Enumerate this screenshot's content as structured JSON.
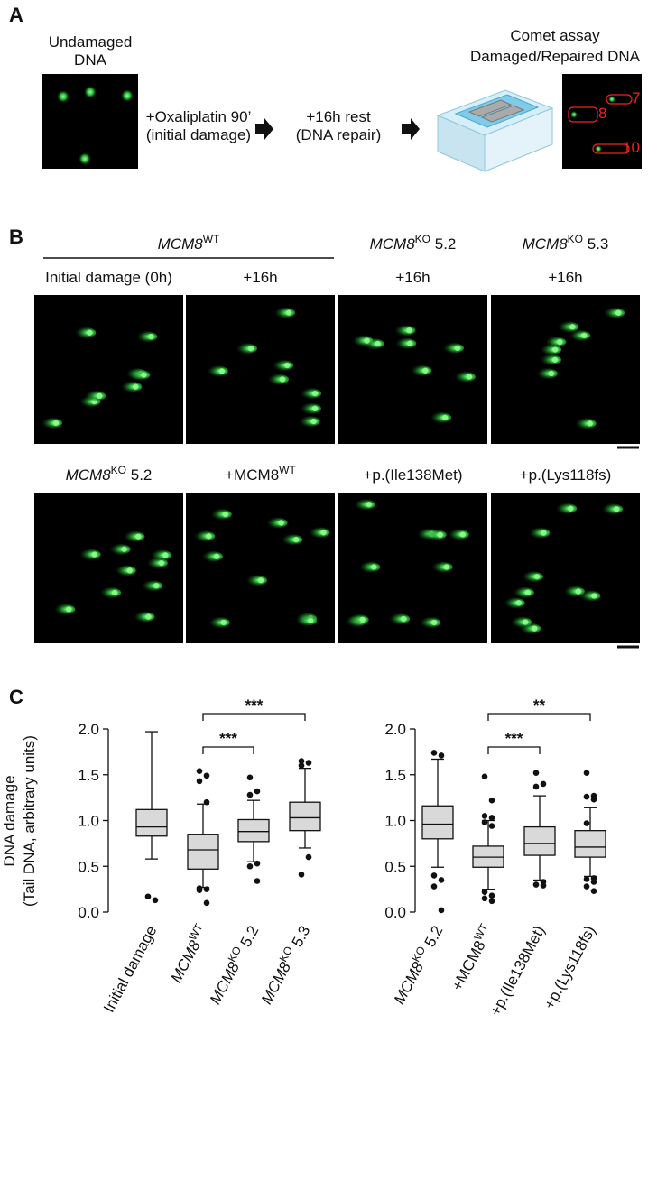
{
  "panel_a": {
    "letter": "A",
    "undamaged": [
      "Undamaged",
      "DNA"
    ],
    "step1": [
      "+Oxaliplatin 90’",
      "(initial damage)"
    ],
    "step2": [
      "+16h rest",
      "(DNA repair)"
    ],
    "result": [
      "Comet assay",
      "Damaged/Repaired DNA"
    ],
    "comet_ids": [
      "7",
      "8",
      "10"
    ]
  },
  "panel_b": {
    "letter": "B",
    "group_header": [
      {
        "text": "MCM8",
        "style": "italic"
      },
      {
        "text": "WT",
        "style": "sup"
      }
    ],
    "row1_headers": [
      [
        {
          "text": "MCM8",
          "style": "italic"
        },
        {
          "text": "KO",
          "style": "sup"
        },
        {
          "text": " 5.2",
          "style": "normal"
        }
      ],
      [
        {
          "text": "MCM8",
          "style": "italic"
        },
        {
          "text": "KO",
          "style": "sup"
        },
        {
          "text": " 5.3",
          "style": "normal"
        }
      ]
    ],
    "row1_labels": [
      "Initial damage (0h)",
      "+16h",
      "+16h",
      "+16h"
    ],
    "row2_labels": [
      [
        {
          "text": "MCM8",
          "style": "italic"
        },
        {
          "text": "KO",
          "style": "sup"
        },
        {
          "text": " 5.2",
          "style": "normal"
        }
      ],
      [
        {
          "text": "+MCM8",
          "style": "normal"
        },
        {
          "text": "WT",
          "style": "sup"
        }
      ],
      [
        {
          "text": "+p.(Ile138Met)",
          "style": "normal"
        }
      ],
      [
        {
          "text": "+p.(Lys118fs)",
          "style": "normal"
        }
      ]
    ]
  },
  "chart_data": [
    {
      "type": "box",
      "letter": "C",
      "ylabel": [
        "DNA damage",
        "(Tail DNA, arbitrary units)"
      ],
      "ylim": [
        0,
        2
      ],
      "yticks": [
        {
          "value": 0,
          "label": "0.0"
        },
        0.5,
        {
          "value": 1,
          "label": "1.0"
        },
        1.5,
        {
          "value": 2,
          "label": "2.0"
        }
      ],
      "color": "#d9d9d9",
      "categories": [
        [
          {
            "text": "Initial damage",
            "style": "normal"
          }
        ],
        [
          {
            "text": "MCM8",
            "style": "italic"
          },
          {
            "text": "WT",
            "style": "sup"
          }
        ],
        [
          {
            "text": "MCM8",
            "style": "italic"
          },
          {
            "text": "KO",
            "style": "sup"
          },
          {
            "text": " 5.2",
            "style": "normal"
          }
        ],
        [
          {
            "text": "MCM8",
            "style": "italic"
          },
          {
            "text": "KO",
            "style": "sup"
          },
          {
            "text": " 5.3",
            "style": "normal"
          }
        ]
      ],
      "boxes": [
        {
          "low": 0.58,
          "q1": 0.83,
          "median": 0.93,
          "q3": 1.12,
          "high": 1.97,
          "outliers": [
            0.17,
            0.13
          ]
        },
        {
          "low": 0.27,
          "q1": 0.47,
          "median": 0.68,
          "q3": 0.85,
          "high": 1.18,
          "outliers": [
            1.54,
            1.49,
            1.43,
            1.2,
            0.26,
            0.25,
            0.24,
            0.1
          ]
        },
        {
          "low": 0.55,
          "q1": 0.77,
          "median": 0.88,
          "q3": 1.01,
          "high": 1.22,
          "outliers": [
            1.47,
            1.32,
            1.28,
            0.53,
            0.5,
            0.34
          ]
        },
        {
          "low": 0.7,
          "q1": 0.89,
          "median": 1.03,
          "q3": 1.2,
          "high": 1.57,
          "outliers": [
            1.65,
            1.63,
            1.6,
            0.6,
            0.41
          ]
        }
      ],
      "annotations": [
        "***",
        "***"
      ]
    },
    {
      "type": "box",
      "ylim": [
        0,
        2
      ],
      "yticks": [
        {
          "value": 0,
          "label": "0.0"
        },
        0.5,
        {
          "value": 1,
          "label": "1.0"
        },
        1.5,
        {
          "value": 2,
          "label": "2.0"
        }
      ],
      "color": "#d9d9d9",
      "categories": [
        [
          {
            "text": "MCM8",
            "style": "italic"
          },
          {
            "text": "KO",
            "style": "sup"
          },
          {
            "text": " 5.2",
            "style": "normal"
          }
        ],
        [
          {
            "text": "+MCM8",
            "style": "normal"
          },
          {
            "text": "WT",
            "style": "sup"
          }
        ],
        [
          {
            "text": "+p.(Ile138Met)",
            "style": "normal"
          }
        ],
        [
          {
            "text": "+p.(Lys118fs)",
            "style": "normal"
          }
        ]
      ],
      "boxes": [
        {
          "low": 0.49,
          "q1": 0.8,
          "median": 0.96,
          "q3": 1.16,
          "high": 1.67,
          "outliers": [
            1.74,
            1.71,
            0.4,
            0.35,
            0.28,
            0.02
          ]
        },
        {
          "low": 0.25,
          "q1": 0.49,
          "median": 0.6,
          "q3": 0.72,
          "high": 1.0,
          "outliers": [
            1.48,
            1.22,
            1.05,
            1.03,
            0.98,
            0.94,
            0.22,
            0.18,
            0.15,
            0.12
          ]
        },
        {
          "low": 0.35,
          "q1": 0.62,
          "median": 0.75,
          "q3": 0.93,
          "high": 1.27,
          "outliers": [
            1.52,
            1.4,
            1.37,
            0.33,
            0.3,
            0.29
          ]
        },
        {
          "low": 0.39,
          "q1": 0.6,
          "median": 0.71,
          "q3": 0.89,
          "high": 1.14,
          "outliers": [
            1.52,
            1.27,
            1.26,
            1.23,
            0.97,
            0.37,
            0.36,
            0.33,
            0.28,
            0.23
          ]
        }
      ],
      "annotations": [
        "***",
        "**"
      ]
    }
  ]
}
